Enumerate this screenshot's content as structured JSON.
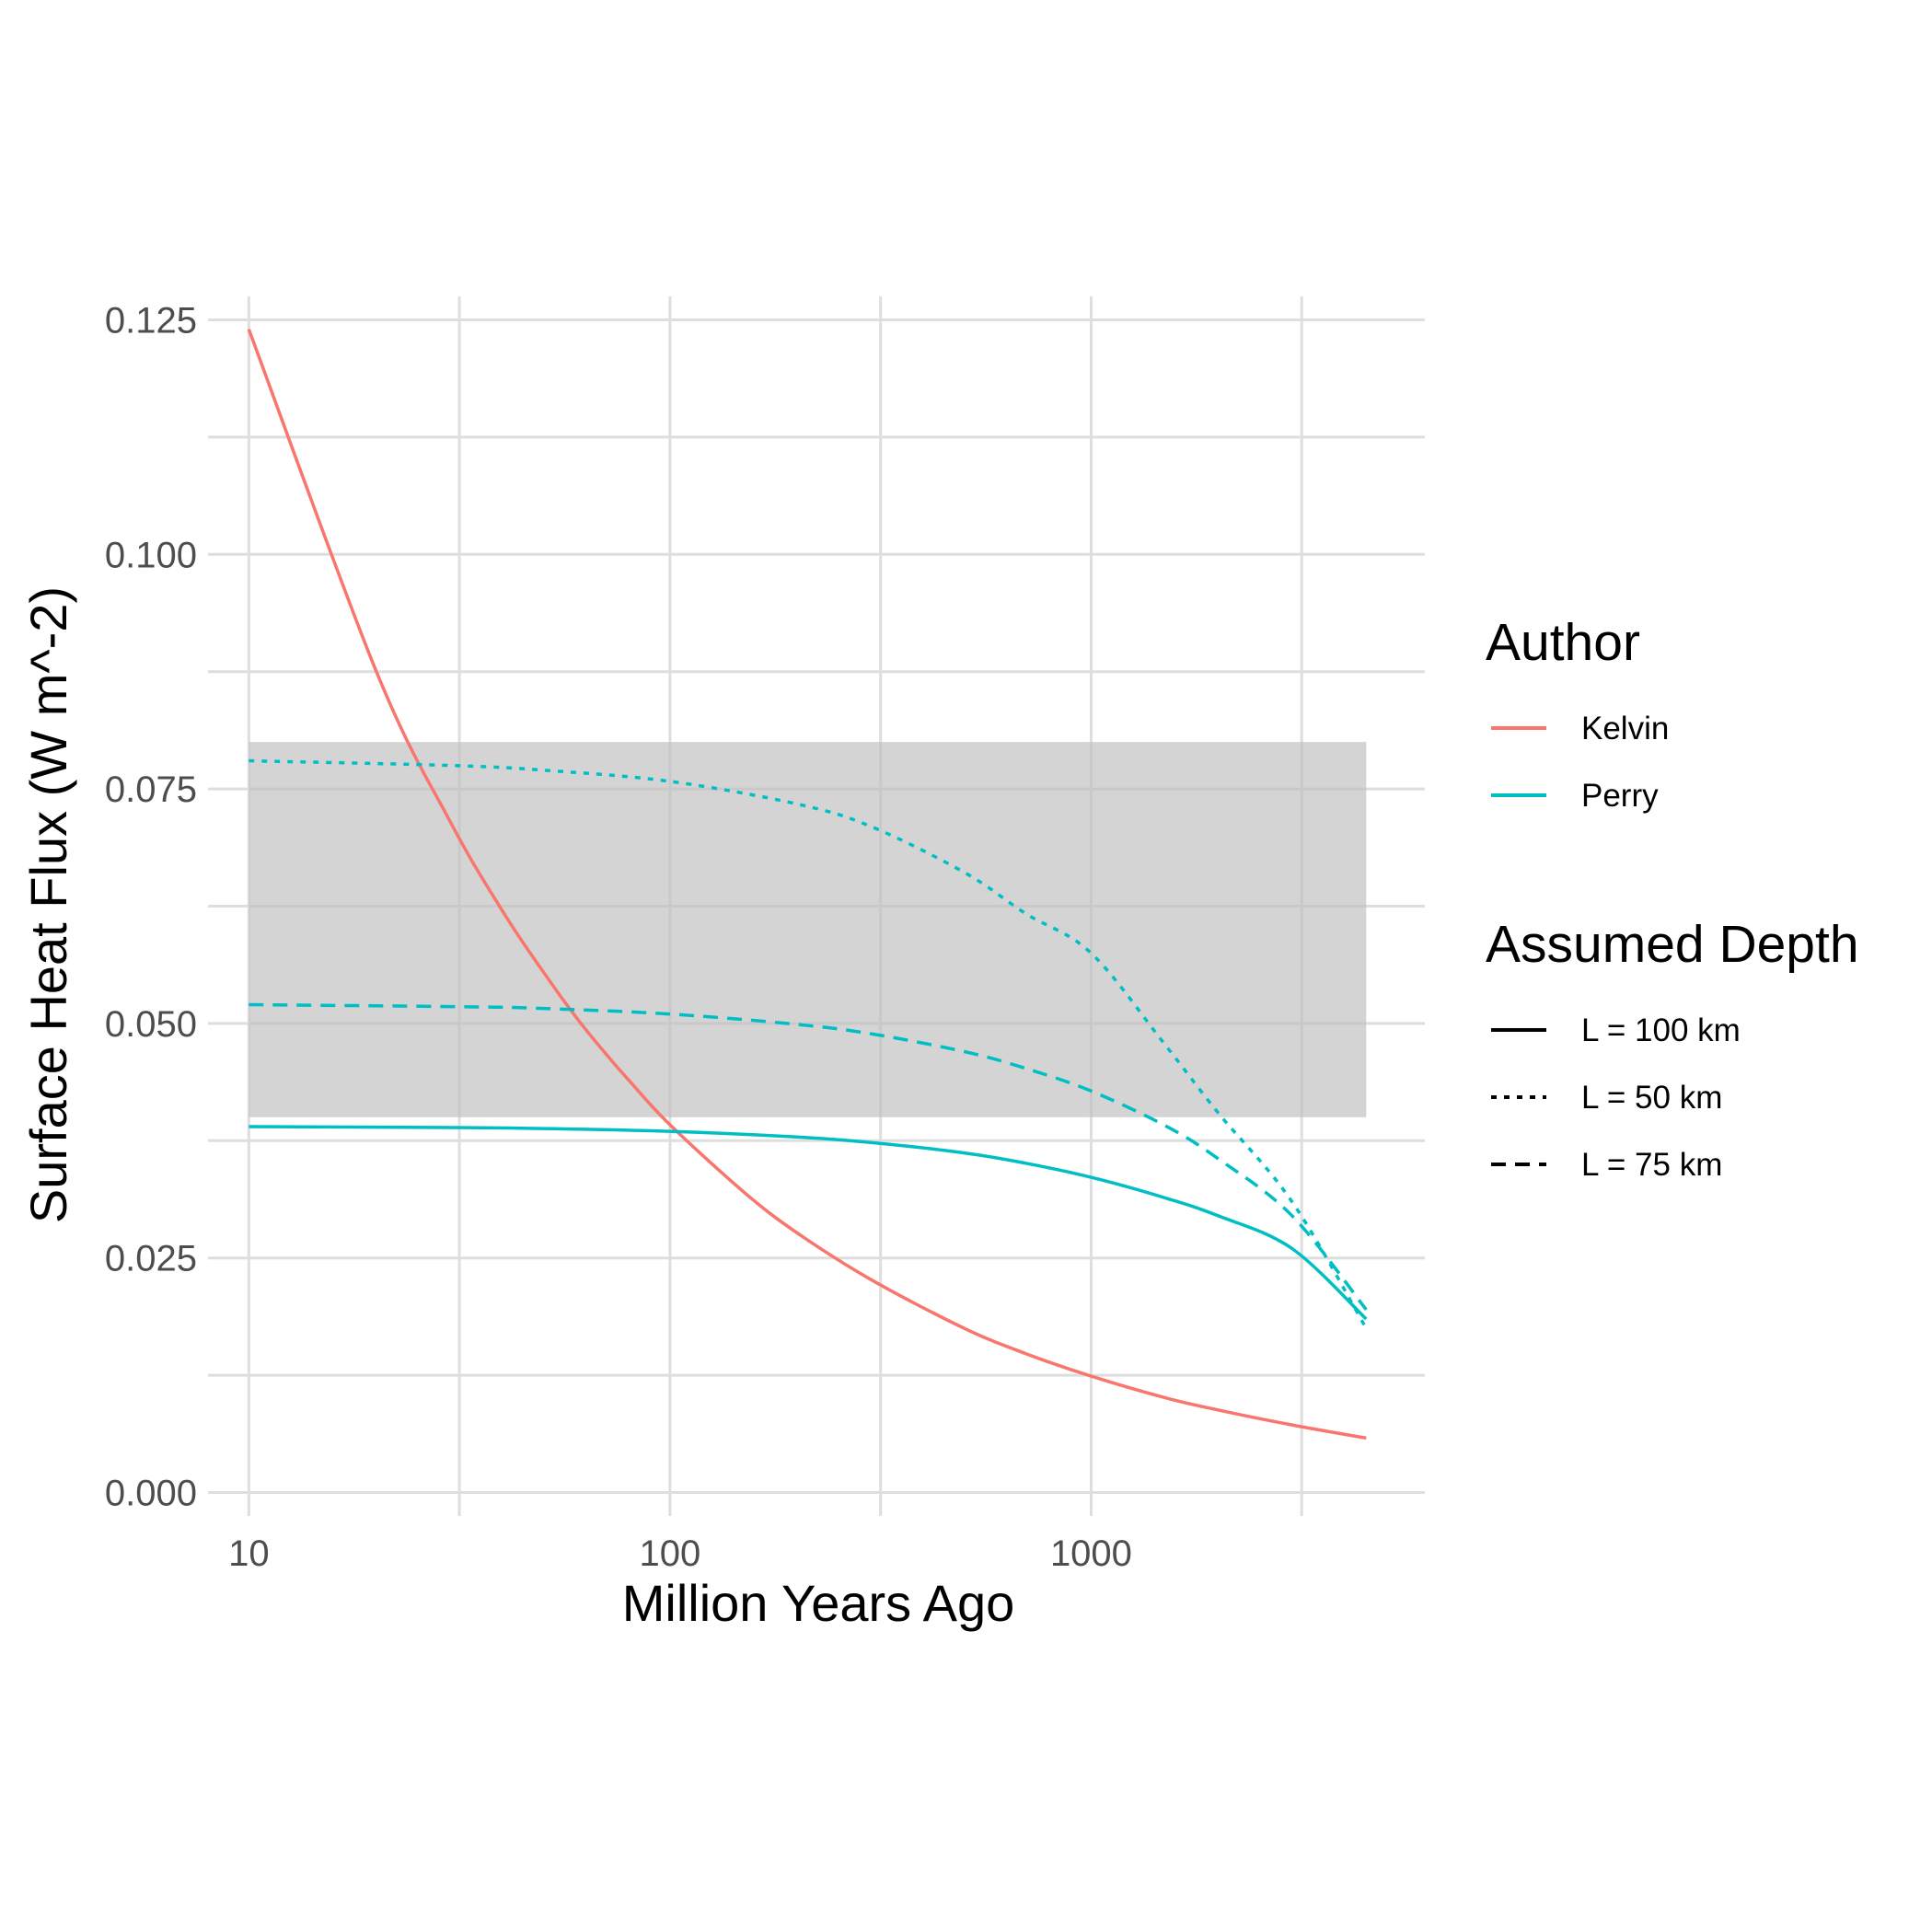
{
  "chart_data": {
    "type": "line",
    "xlabel": "Million Years Ago",
    "ylabel": "Surface Heat Flux (W m^-2)",
    "x_scale": "log10",
    "xlim": [
      8.0,
      6200
    ],
    "ylim": [
      -0.0025,
      0.1275
    ],
    "x_ticks": [
      {
        "value": 10,
        "label": "10"
      },
      {
        "value": 100,
        "label": "100"
      },
      {
        "value": 1000,
        "label": "1000"
      }
    ],
    "x_minor_ticks": [
      31.62,
      316.2,
      3162
    ],
    "y_ticks": [
      {
        "value": 0.0,
        "label": "0.000"
      },
      {
        "value": 0.025,
        "label": "0.025"
      },
      {
        "value": 0.05,
        "label": "0.050"
      },
      {
        "value": 0.075,
        "label": "0.075"
      },
      {
        "value": 0.1,
        "label": "0.100"
      },
      {
        "value": 0.125,
        "label": "0.125"
      }
    ],
    "y_minor_ticks": [
      0.0125,
      0.0375,
      0.0625,
      0.0875,
      0.1125
    ],
    "grid": true,
    "shaded_band": {
      "x": [
        10,
        4500
      ],
      "y": [
        0.04,
        0.08
      ],
      "color": "#bdbdbd",
      "opacity": 0.65
    },
    "series": [
      {
        "author": "Kelvin",
        "depth": "L = 100 km",
        "color": "#F8766D",
        "linetype": "solid",
        "x": [
          10,
          20,
          30,
          40,
          50,
          60,
          70,
          80,
          100,
          150,
          200,
          300,
          500,
          700,
          1000,
          1500,
          2000,
          3000,
          4500
        ],
        "y": [
          0.124,
          0.0877,
          0.0716,
          0.062,
          0.0555,
          0.0506,
          0.0469,
          0.0439,
          0.0392,
          0.032,
          0.0277,
          0.0227,
          0.0175,
          0.0148,
          0.0124,
          0.0101,
          0.0088,
          0.0072,
          0.0058
        ]
      },
      {
        "author": "Perry",
        "depth": "L = 100 km",
        "color": "#00BFC4",
        "linetype": "solid",
        "x": [
          10,
          30,
          50,
          100,
          200,
          300,
          500,
          700,
          1000,
          1500,
          2000,
          3000,
          4500
        ],
        "y": [
          0.039,
          0.0389,
          0.0388,
          0.0385,
          0.0379,
          0.0373,
          0.0362,
          0.0351,
          0.0336,
          0.0314,
          0.0295,
          0.026,
          0.0185
        ]
      },
      {
        "author": "Perry",
        "depth": "L = 50 km",
        "color": "#00BFC4",
        "linetype": "dotted",
        "x": [
          10,
          30,
          50,
          100,
          200,
          300,
          500,
          700,
          1000,
          1500,
          2000,
          3000,
          4500
        ],
        "y": [
          0.078,
          0.0775,
          0.077,
          0.0758,
          0.0734,
          0.071,
          0.0661,
          0.0617,
          0.0575,
          0.0477,
          0.0405,
          0.031,
          0.0175
        ]
      },
      {
        "author": "Perry",
        "depth": "L = 75 km",
        "color": "#00BFC4",
        "linetype": "dashed",
        "x": [
          10,
          30,
          50,
          100,
          200,
          300,
          500,
          700,
          1000,
          1500,
          2000,
          3000,
          4500
        ],
        "y": [
          0.052,
          0.0518,
          0.0516,
          0.051,
          0.0499,
          0.0489,
          0.047,
          0.0452,
          0.0428,
          0.0391,
          0.0356,
          0.0295,
          0.0195
        ]
      }
    ],
    "legend": {
      "position": "right",
      "groups": [
        {
          "title": "Author",
          "items": [
            {
              "label": "Kelvin",
              "color": "#F8766D",
              "linetype": "solid"
            },
            {
              "label": "Perry",
              "color": "#00BFC4",
              "linetype": "solid"
            }
          ]
        },
        {
          "title": "Assumed Depth",
          "items": [
            {
              "label": "L = 100 km",
              "color": "#000000",
              "linetype": "solid"
            },
            {
              "label": "L = 50 km",
              "color": "#000000",
              "linetype": "dotted"
            },
            {
              "label": "L = 75 km",
              "color": "#000000",
              "linetype": "dashed"
            }
          ]
        }
      ]
    }
  }
}
